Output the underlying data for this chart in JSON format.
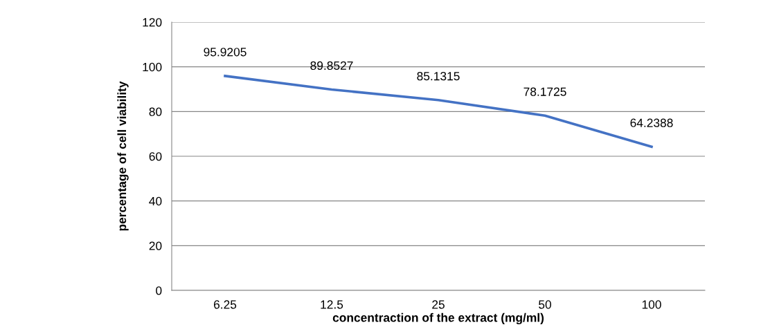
{
  "chart_data": {
    "type": "line",
    "categories": [
      "6.25",
      "12.5",
      "25",
      "50",
      "100"
    ],
    "series": [
      {
        "color": "#4472c4",
        "values": [
          95.9205,
          89.8527,
          85.1315,
          78.1725,
          64.2388
        ]
      }
    ],
    "data_labels": true,
    "xlabel": "concentraction of the extract (mg/ml)",
    "ylabel": "percentage of cell viability",
    "ylim": [
      0,
      120
    ],
    "yticks": [
      0,
      20,
      40,
      60,
      80,
      100,
      120
    ],
    "grid": "y",
    "marker": "none",
    "line_style": "solid"
  }
}
